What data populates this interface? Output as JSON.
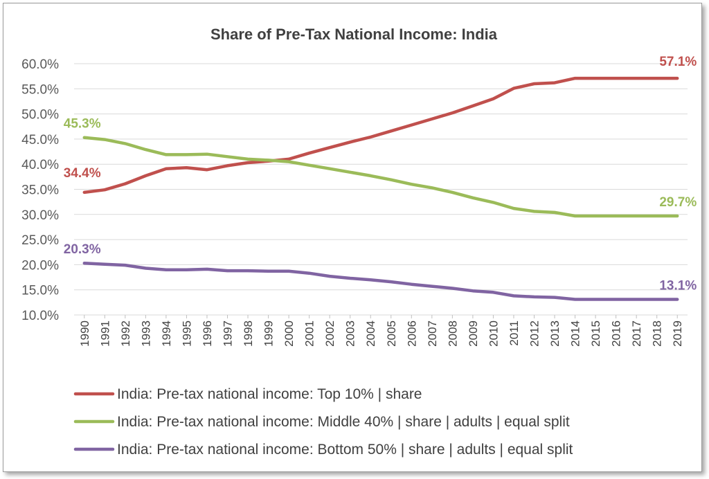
{
  "chart_data": {
    "type": "line",
    "title": "Share of Pre-Tax National Income: India",
    "xlabel": "",
    "ylabel": "",
    "x": [
      "1990",
      "1991",
      "1992",
      "1993",
      "1994",
      "1995",
      "1996",
      "1997",
      "1998",
      "1999",
      "2000",
      "2001",
      "2002",
      "2003",
      "2004",
      "2005",
      "2006",
      "2007",
      "2008",
      "2009",
      "2010",
      "2011",
      "2012",
      "2013",
      "2014",
      "2015",
      "2016",
      "2017",
      "2018",
      "2019"
    ],
    "ylim": [
      0.1,
      0.6
    ],
    "yticks": [
      "10.0%",
      "15.0%",
      "20.0%",
      "25.0%",
      "30.0%",
      "35.0%",
      "40.0%",
      "45.0%",
      "50.0%",
      "55.0%",
      "60.0%"
    ],
    "grid": "horizontal",
    "legend_position": "bottom",
    "series": [
      {
        "name": "India: Pre-tax national income: Top 10% | share",
        "color": "#c0504d",
        "values": [
          0.344,
          0.349,
          0.361,
          0.377,
          0.391,
          0.393,
          0.389,
          0.397,
          0.403,
          0.406,
          0.41,
          0.422,
          0.433,
          0.444,
          0.454,
          0.466,
          0.478,
          0.49,
          0.502,
          0.516,
          0.53,
          0.551,
          0.56,
          0.562,
          0.571,
          0.571,
          0.571,
          0.571,
          0.571,
          0.571
        ],
        "labels": [
          {
            "index": 0,
            "text": "34.4%"
          },
          {
            "index": 29,
            "text": "57.1%"
          }
        ]
      },
      {
        "name": "India: Pre-tax national income: Middle 40% | share | adults | equal split",
        "color": "#9bbb59",
        "values": [
          0.453,
          0.449,
          0.441,
          0.429,
          0.419,
          0.419,
          0.42,
          0.415,
          0.41,
          0.408,
          0.405,
          0.398,
          0.391,
          0.384,
          0.377,
          0.369,
          0.36,
          0.353,
          0.344,
          0.333,
          0.324,
          0.312,
          0.306,
          0.304,
          0.297,
          0.297,
          0.297,
          0.297,
          0.297,
          0.297
        ],
        "labels": [
          {
            "index": 0,
            "text": "45.3%"
          },
          {
            "index": 29,
            "text": "29.7%"
          }
        ]
      },
      {
        "name": "India: Pre-tax national income: Bottom 50% | share | adults | equal split",
        "color": "#8064a2",
        "values": [
          0.203,
          0.201,
          0.199,
          0.193,
          0.19,
          0.19,
          0.191,
          0.188,
          0.188,
          0.187,
          0.187,
          0.183,
          0.177,
          0.173,
          0.17,
          0.166,
          0.161,
          0.157,
          0.153,
          0.148,
          0.145,
          0.138,
          0.136,
          0.135,
          0.131,
          0.131,
          0.131,
          0.131,
          0.131,
          0.131
        ],
        "labels": [
          {
            "index": 0,
            "text": "20.3%"
          },
          {
            "index": 29,
            "text": "13.1%"
          }
        ]
      }
    ]
  }
}
